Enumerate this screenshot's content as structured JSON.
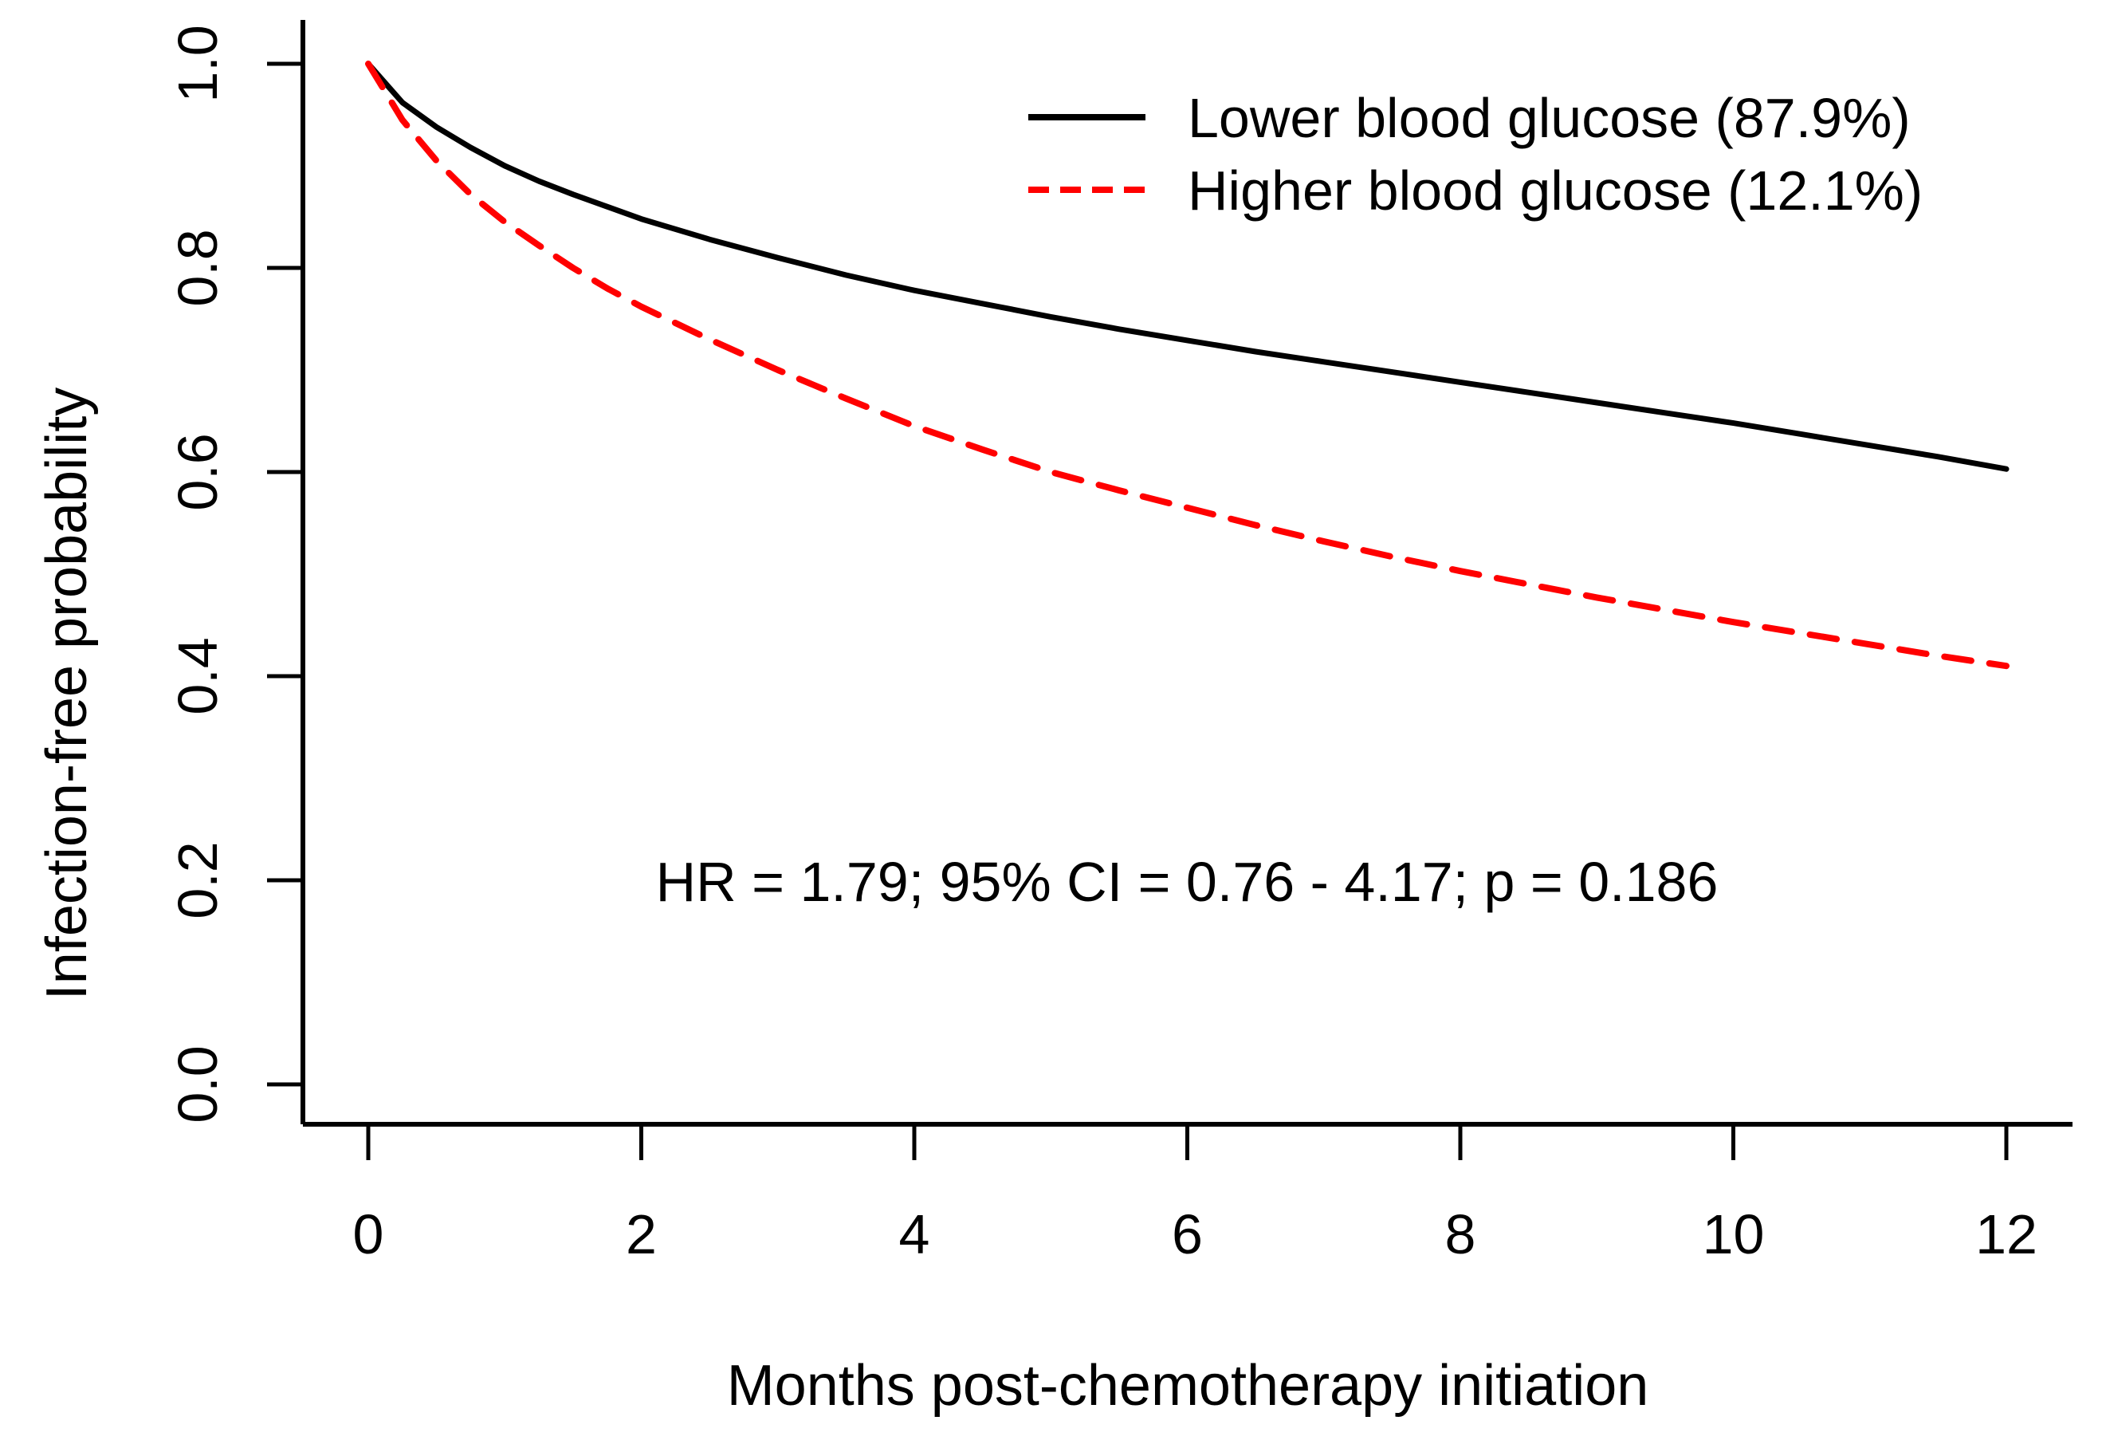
{
  "figure": {
    "background_color": "#ffffff",
    "text_color": "#000000"
  },
  "chart_data": {
    "type": "line",
    "title": "",
    "xlabel": "Months post-chemotherapy initiation",
    "ylabel": "Infection-free probability",
    "xlim": [
      0,
      12
    ],
    "ylim": [
      0.0,
      1.0
    ],
    "grid": false,
    "legend_position": "inside-top-right",
    "xticks": {
      "values": [
        0,
        2,
        4,
        6,
        8,
        10,
        12
      ],
      "labels": [
        "0",
        "2",
        "4",
        "6",
        "8",
        "10",
        "12"
      ]
    },
    "yticks": {
      "values": [
        0.0,
        0.2,
        0.4,
        0.6,
        0.8,
        1.0
      ],
      "labels": [
        "0.0",
        "0.2",
        "0.4",
        "0.6",
        "0.8",
        "1.0"
      ]
    },
    "annotation": {
      "text": "HR = 1.79; 95% CI = 0.76 - 4.17; p = 0.186",
      "x": 6.0,
      "y": 0.18
    },
    "stats": {
      "hazard_ratio": "1.79",
      "ci_95": "0.76 - 4.17",
      "p_value": "0.186"
    },
    "x": [
      0,
      0.25,
      0.5,
      0.75,
      1,
      1.25,
      1.5,
      1.75,
      2,
      2.5,
      3,
      3.5,
      4,
      4.5,
      5,
      5.5,
      6,
      6.5,
      7,
      7.5,
      8,
      8.5,
      9,
      9.5,
      10,
      10.5,
      11,
      11.5,
      12
    ],
    "series": [
      {
        "name": "Lower blood glucose (87.9%)",
        "group_percentage": "87.9%",
        "color": "#000000",
        "line_style": "solid",
        "values": [
          1.0,
          0.962,
          0.938,
          0.918,
          0.9,
          0.885,
          0.872,
          0.86,
          0.848,
          0.828,
          0.81,
          0.793,
          0.778,
          0.765,
          0.752,
          0.74,
          0.729,
          0.718,
          0.708,
          0.698,
          0.688,
          0.678,
          0.668,
          0.658,
          0.648,
          0.637,
          0.626,
          0.615,
          0.603
        ]
      },
      {
        "name": "Higher blood glucose (12.1%)",
        "group_percentage": "12.1%",
        "color": "#ff0000",
        "line_style": "dashed",
        "values": [
          1.0,
          0.945,
          0.905,
          0.872,
          0.845,
          0.822,
          0.8,
          0.78,
          0.762,
          0.73,
          0.7,
          0.672,
          0.645,
          0.622,
          0.6,
          0.582,
          0.565,
          0.548,
          0.532,
          0.517,
          0.503,
          0.49,
          0.477,
          0.465,
          0.453,
          0.442,
          0.431,
          0.42,
          0.41
        ]
      }
    ]
  }
}
